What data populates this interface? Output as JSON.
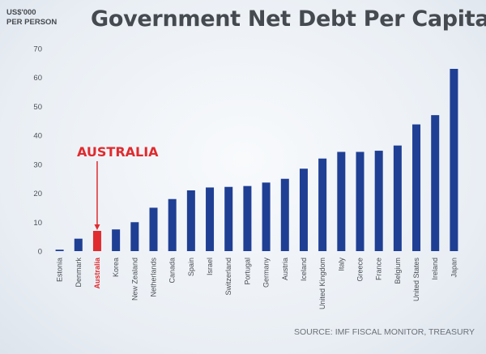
{
  "header": {
    "title": "Government Net Debt Per Capita",
    "unit_line1": "US$'000",
    "unit_line2": "PER PERSON"
  },
  "footer": {
    "source": "SOURCE: IMF FISCAL MONITOR, TREASURY"
  },
  "callout": {
    "label": "AUSTRALIA",
    "color": "#e02b2e"
  },
  "colors": {
    "bar": "#1f3f94",
    "highlight": "#e02b2e",
    "axis_text": "#4a4f56"
  },
  "chart_data": {
    "type": "bar",
    "title": "Government Net Debt Per Capita",
    "ylabel": "US$'000 PER PERSON",
    "xlabel": "",
    "ylim": [
      0,
      70
    ],
    "yticks": [
      0,
      10,
      20,
      30,
      40,
      50,
      60,
      70
    ],
    "highlight": "Australia",
    "categories": [
      "Estonia",
      "Denmark",
      "Australia",
      "Korea",
      "New Zealand",
      "Netherlands",
      "Canada",
      "Spain",
      "Israel",
      "Switzerland",
      "Portugal",
      "Germany",
      "Austria",
      "Iceland",
      "United Kingdom",
      "Italy",
      "Greece",
      "France",
      "Belgium",
      "United States",
      "Ireland",
      "Japan"
    ],
    "values": [
      0.5,
      4.3,
      7,
      7.5,
      10,
      15,
      18,
      21,
      22,
      22.2,
      22.5,
      23.7,
      25,
      28.5,
      32,
      34.3,
      34.3,
      34.7,
      36.5,
      43.8,
      47,
      63
    ]
  }
}
